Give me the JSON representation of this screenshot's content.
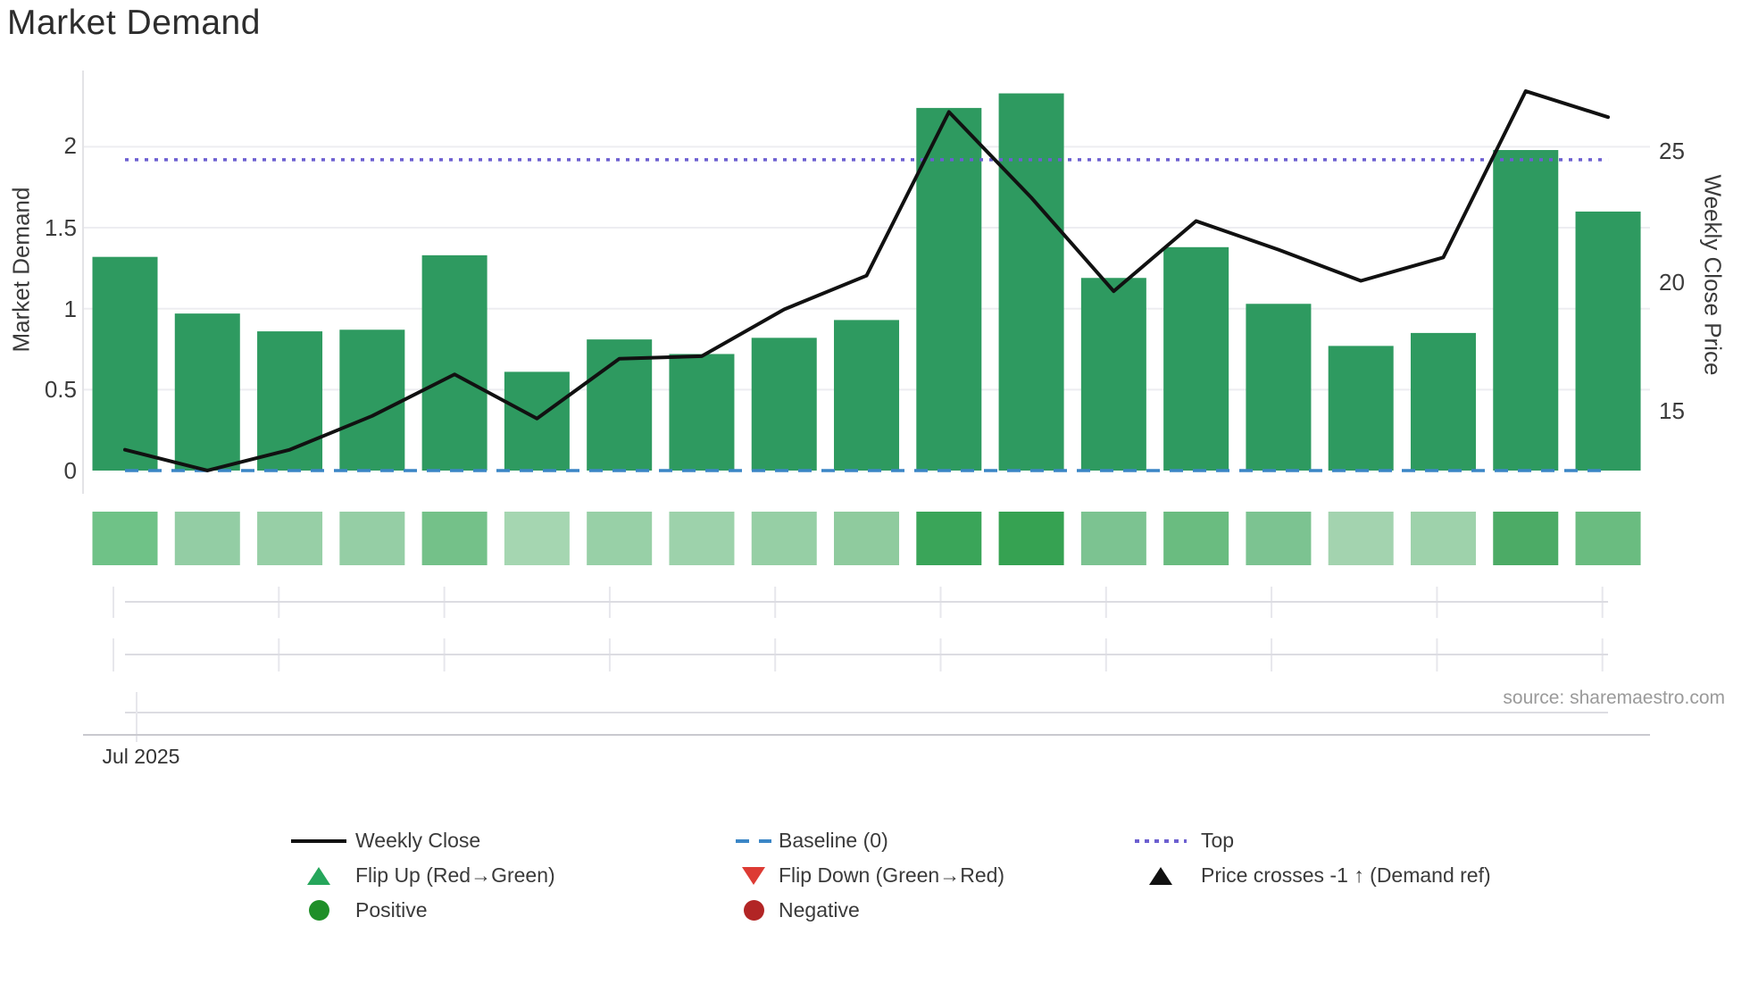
{
  "title": "Market Demand",
  "source": "source: sharemaestro.com",
  "axes": {
    "left": {
      "label": "Market Demand",
      "ticks": [
        "2",
        "1.5",
        "1",
        "0.5",
        "0"
      ]
    },
    "right": {
      "label": "Weekly Close Price",
      "ticks": [
        "25",
        "20",
        "15"
      ]
    },
    "x": {
      "month_label": "Jul 2025"
    }
  },
  "chart_data": {
    "type": "bar",
    "title": "Market Demand",
    "ylabel_left": "Market Demand",
    "ylabel_right": "Weekly Close Price",
    "x_tick_label": "Jul 2025",
    "n_weeks": 19,
    "left_ticks": [
      0,
      0.5,
      1,
      1.5,
      2
    ],
    "right_ticks": [
      15,
      20,
      25
    ],
    "left_ylim": [
      0,
      2.45
    ],
    "right_ylim_approx": [
      12.4,
      28.7
    ],
    "grid": true,
    "legend_position": "bottom",
    "series": [
      {
        "name": "Market Demand",
        "type": "bar",
        "axis": "left",
        "color": "#2e9a60",
        "values": [
          1.32,
          0.97,
          0.86,
          0.87,
          1.33,
          0.61,
          0.81,
          0.72,
          0.82,
          0.93,
          2.24,
          2.33,
          1.19,
          1.38,
          1.03,
          0.77,
          0.85,
          1.98,
          1.6
        ]
      },
      {
        "name": "Weekly Close",
        "type": "line",
        "axis": "right",
        "color": "#111111",
        "values": [
          13.5,
          12.7,
          13.5,
          14.8,
          16.4,
          14.7,
          17.0,
          17.1,
          18.9,
          20.2,
          26.5,
          23.2,
          19.6,
          22.3,
          21.2,
          20.0,
          20.9,
          27.3,
          26.3
        ]
      }
    ],
    "reference_lines": [
      {
        "name": "Baseline (0)",
        "axis": "left",
        "value": 0,
        "style": "dashed",
        "color": "#3b86c6"
      },
      {
        "name": "Top",
        "axis": "left",
        "value": 1.92,
        "style": "dotted",
        "color": "#6c5fd0"
      }
    ],
    "heat_strip": {
      "description": "demand intensity per week",
      "colors": [
        "#6fc287",
        "#93cda4",
        "#97cfa6",
        "#95cea5",
        "#74c189",
        "#a5d6b1",
        "#98d0a7",
        "#9dd2ab",
        "#96cfa5",
        "#8fcb9e",
        "#3aa559",
        "#36a252",
        "#7cc391",
        "#6abc80",
        "#7cc391",
        "#a3d3af",
        "#9ed2ab",
        "#4cab66",
        "#6abc80"
      ]
    }
  },
  "legend": {
    "col1": [
      {
        "label": "Weekly Close",
        "marker": "line-black"
      },
      {
        "label": "Flip Up (Red→Green)",
        "marker": "triangle-up-green"
      },
      {
        "label": "Positive",
        "marker": "circle-green"
      }
    ],
    "col2": [
      {
        "label": "Baseline (0)",
        "marker": "dash-blue"
      },
      {
        "label": "Flip Down (Green→Red)",
        "marker": "triangle-down-red"
      },
      {
        "label": "Negative",
        "marker": "circle-darkred"
      }
    ],
    "col3": [
      {
        "label": "Top",
        "marker": "dotted-purple"
      },
      {
        "label": "Price crosses -1 ↑ (Demand ref)",
        "marker": "triangle-up-black"
      }
    ]
  },
  "colors": {
    "bar": "#2e9a60",
    "price_line": "#111111",
    "baseline": "#3b86c6",
    "top_line": "#6c5fd0",
    "gridline": "#ededf1",
    "subgrid": "#dcdce2",
    "subtick": "#e7e7ec",
    "axis_line": "#c9c9cf",
    "spine": "#e3e3e6"
  }
}
